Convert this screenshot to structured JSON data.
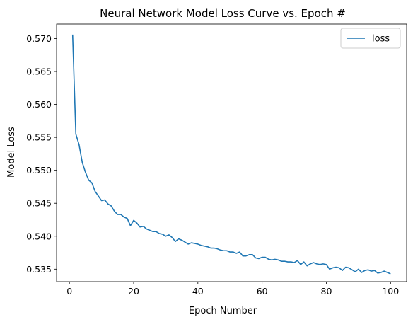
{
  "chart_data": {
    "type": "line",
    "title": "Neural Network Model Loss Curve vs. Epoch #",
    "xlabel": "Epoch Number",
    "ylabel": "Model Loss",
    "xlim": [
      -4,
      105
    ],
    "ylim": [
      0.5331,
      0.5722
    ],
    "xticks": [
      0,
      20,
      40,
      60,
      80,
      100
    ],
    "xtick_labels": [
      "0",
      "20",
      "40",
      "60",
      "80",
      "100"
    ],
    "yticks": [
      0.535,
      0.54,
      0.545,
      0.55,
      0.555,
      0.56,
      0.565,
      0.57
    ],
    "ytick_labels": [
      "0.535",
      "0.540",
      "0.545",
      "0.550",
      "0.555",
      "0.560",
      "0.565",
      "0.570"
    ],
    "grid": false,
    "legend_position": "top-right",
    "series": [
      {
        "name": "loss",
        "color": "#1f77b4",
        "x": [
          1,
          2,
          3,
          4,
          5,
          6,
          7,
          8,
          9,
          10,
          11,
          12,
          13,
          14,
          15,
          16,
          17,
          18,
          19,
          20,
          21,
          22,
          23,
          24,
          25,
          26,
          27,
          28,
          29,
          30,
          31,
          32,
          33,
          34,
          35,
          36,
          37,
          38,
          39,
          40,
          41,
          42,
          43,
          44,
          45,
          46,
          47,
          48,
          49,
          50,
          51,
          52,
          53,
          54,
          55,
          56,
          57,
          58,
          59,
          60,
          61,
          62,
          63,
          64,
          65,
          66,
          67,
          68,
          69,
          70,
          71,
          72,
          73,
          74,
          75,
          76,
          77,
          78,
          79,
          80,
          81,
          82,
          83,
          84,
          85,
          86,
          87,
          88,
          89,
          90,
          91,
          92,
          93,
          94,
          95,
          96,
          97,
          98,
          99,
          100
        ],
        "values": [
          0.5706,
          0.5555,
          0.5539,
          0.5512,
          0.5497,
          0.5485,
          0.5481,
          0.5468,
          0.5461,
          0.5454,
          0.5455,
          0.5449,
          0.5446,
          0.5438,
          0.5433,
          0.5433,
          0.5429,
          0.5427,
          0.5416,
          0.5424,
          0.542,
          0.5414,
          0.5415,
          0.5411,
          0.5409,
          0.5407,
          0.5407,
          0.5404,
          0.5403,
          0.54,
          0.5402,
          0.5398,
          0.5392,
          0.5396,
          0.5394,
          0.5391,
          0.5388,
          0.539,
          0.5389,
          0.5388,
          0.5386,
          0.5385,
          0.5384,
          0.5382,
          0.5382,
          0.5381,
          0.5379,
          0.5378,
          0.5378,
          0.5376,
          0.5376,
          0.5374,
          0.5376,
          0.537,
          0.537,
          0.5372,
          0.5372,
          0.5367,
          0.5366,
          0.5368,
          0.5368,
          0.5365,
          0.5364,
          0.5365,
          0.5364,
          0.5362,
          0.5362,
          0.5361,
          0.5361,
          0.536,
          0.5363,
          0.5357,
          0.5361,
          0.5355,
          0.5358,
          0.536,
          0.5358,
          0.5357,
          0.5358,
          0.5357,
          0.535,
          0.5352,
          0.5353,
          0.5352,
          0.5348,
          0.5353,
          0.5352,
          0.5349,
          0.5346,
          0.535,
          0.5345,
          0.5348,
          0.5349,
          0.5347,
          0.5348,
          0.5344,
          0.5345,
          0.5347,
          0.5345,
          0.5343
        ]
      }
    ]
  }
}
